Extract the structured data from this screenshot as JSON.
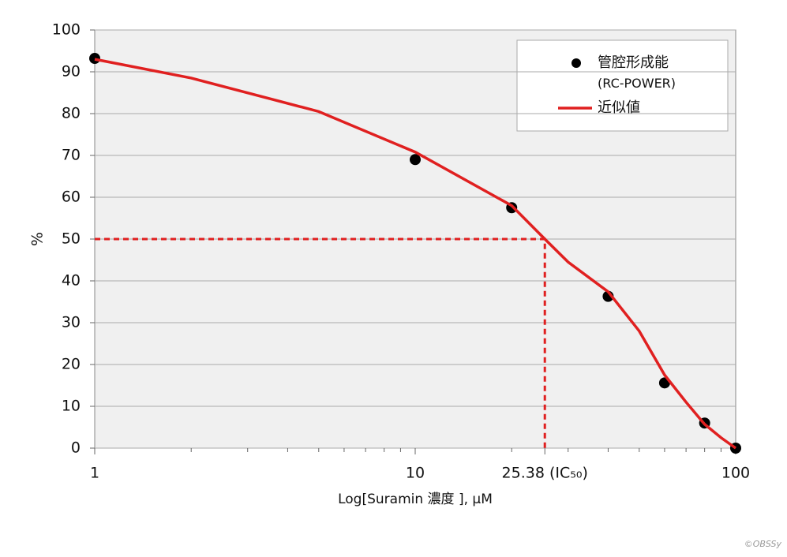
{
  "chart_data": {
    "type": "scatter",
    "xlabel": "Log[Suramin 濃度 ], μM",
    "ylabel": "%",
    "xscale": "log",
    "xlim": [
      1,
      100
    ],
    "ylim": [
      0,
      100
    ],
    "xticks": [
      1,
      10,
      {
        "value": 25.38,
        "label": "25.38 (IC₅₀)"
      },
      100
    ],
    "xminor_ticks": [
      2,
      3,
      4,
      5,
      6,
      7,
      8,
      9,
      20,
      30,
      40,
      50,
      60,
      70,
      80,
      90
    ],
    "yticks": [
      0,
      10,
      20,
      30,
      40,
      50,
      60,
      70,
      80,
      90,
      100
    ],
    "grid": true,
    "legend": "upper right",
    "reference": {
      "x": 25.38,
      "y": 50,
      "color": "#e02020"
    },
    "series": [
      {
        "name": "管腔形成能 (RC-POWER)",
        "kind": "points",
        "color": "#000000",
        "x": [
          1,
          10,
          20,
          40,
          60,
          80,
          100
        ],
        "values": [
          93.2,
          69,
          57.5,
          36.3,
          15.6,
          6,
          0
        ]
      },
      {
        "name": "近似値",
        "kind": "line",
        "color": "#e02020",
        "x": [
          1,
          2,
          5,
          10,
          20,
          25.38,
          30,
          40,
          50,
          60,
          70,
          80,
          90,
          100
        ],
        "values": [
          93,
          88.5,
          80.5,
          70.8,
          58,
          50,
          44.5,
          37.4,
          28,
          17.5,
          11,
          5.7,
          2.5,
          0
        ]
      }
    ],
    "watermark": "©OBSSy"
  }
}
